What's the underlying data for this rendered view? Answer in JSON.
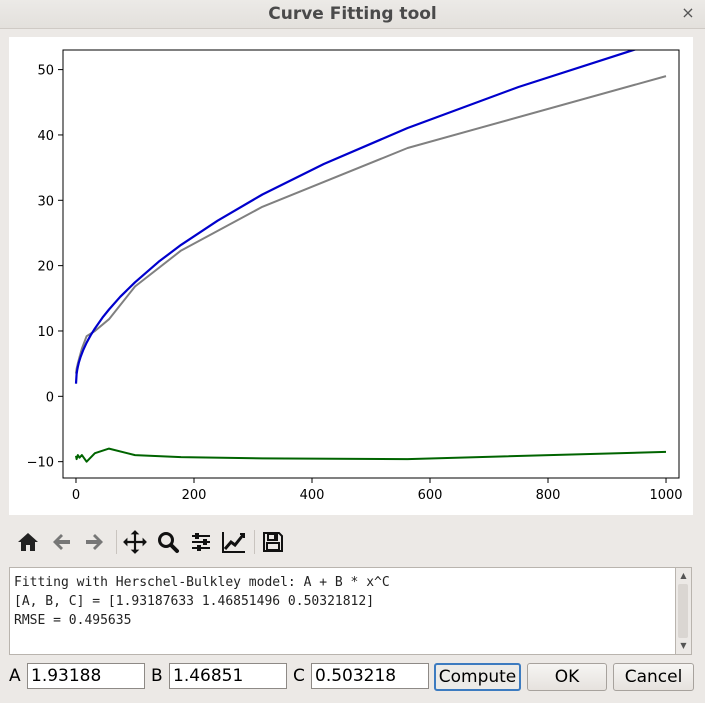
{
  "window": {
    "title": "Curve Fitting tool",
    "close_glyph": "×"
  },
  "toolbar": {
    "icons": [
      "home-icon",
      "back-arrow-icon",
      "forward-arrow-icon",
      "pan-move-icon",
      "zoom-magnifier-icon",
      "configure-subplots-icon",
      "edit-axis-curve-icon",
      "save-floppy-icon"
    ]
  },
  "output": {
    "lines": [
      "Fitting with Herschel-Bulkley model: A + B * x^C",
      "[A, B, C] = [1.93187633 1.46851496 0.50321812]",
      "RMSE = 0.495635"
    ]
  },
  "params": {
    "a_label": "A",
    "a_value": "1.93188",
    "b_label": "B",
    "b_value": "1.46851",
    "c_label": "C",
    "c_value": "0.503218"
  },
  "buttons": {
    "compute": "Compute",
    "ok": "OK",
    "cancel": "Cancel"
  },
  "colors": {
    "data": "#808080",
    "fit": "#0000cc",
    "residual": "#006400"
  },
  "chart_data": {
    "type": "line",
    "xlim": [
      -22,
      1022
    ],
    "ylim": [
      -12.5,
      53
    ],
    "xticks": [
      0,
      200,
      400,
      600,
      800,
      1000
    ],
    "yticks": [
      -10,
      0,
      10,
      20,
      30,
      40,
      50
    ],
    "grid": false,
    "series": [
      {
        "key": "data",
        "x": [
          0,
          1,
          3,
          6,
          10,
          18,
          32,
          56,
          100,
          178,
          316,
          562,
          1000
        ],
        "y": [
          3.5,
          4.2,
          5.0,
          6.0,
          7.3,
          9.2,
          10.0,
          11.8,
          16.8,
          22.3,
          29.0,
          38.0,
          49.0
        ]
      },
      {
        "key": "fit",
        "x": [
          0,
          1,
          2,
          3,
          5,
          8,
          12,
          18,
          25,
          32,
          45,
          56,
          75,
          100,
          140,
          178,
          240,
          316,
          420,
          562,
          750,
          1000
        ],
        "y": [
          1.93,
          3.4,
          4.01,
          4.48,
          5.21,
          6.08,
          7.05,
          8.2,
          9.36,
          10.38,
          12.05,
          13.29,
          15.23,
          17.45,
          20.58,
          23.18,
          26.88,
          30.88,
          35.55,
          41.06,
          47.33,
          54.6
        ]
      },
      {
        "key": "residual",
        "x": [
          0,
          1,
          3,
          6,
          10,
          18,
          32,
          56,
          100,
          178,
          316,
          562,
          1000
        ],
        "y": [
          -9.1,
          -9.6,
          -9.0,
          -9.4,
          -9.0,
          -10.0,
          -8.7,
          -8.0,
          -9.0,
          -9.3,
          -9.5,
          -9.6,
          -8.5
        ]
      }
    ]
  }
}
